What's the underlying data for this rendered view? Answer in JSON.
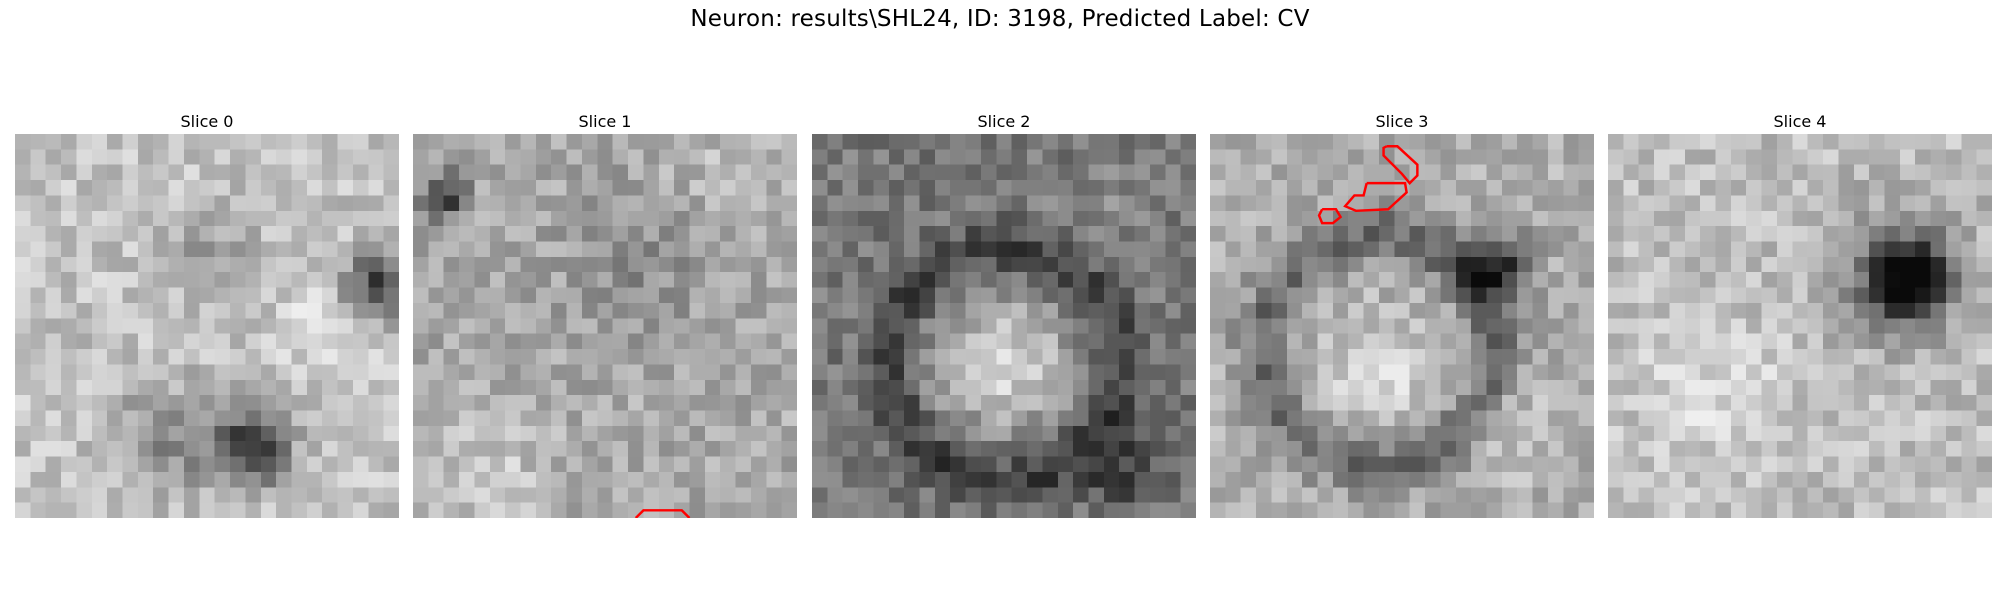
{
  "figure": {
    "title": "Neuron: results\\SHL24, ID: 3198, Predicted Label: CV"
  },
  "panels": [
    {
      "title": "Slice 0",
      "grid_size": 25,
      "pattern": "dark-right-and-bottom",
      "seed": 11
    },
    {
      "title": "Slice 1",
      "grid_size": 25,
      "pattern": "noisy-mid-gray",
      "seed": 23
    },
    {
      "title": "Slice 2",
      "grid_size": 25,
      "pattern": "bright-ring-center",
      "seed": 37
    },
    {
      "title": "Slice 3",
      "grid_size": 25,
      "pattern": "dark-upper-right-ring",
      "seed": 53
    },
    {
      "title": "Slice 4",
      "grid_size": 25,
      "pattern": "dark-upper-right-blob",
      "seed": 71
    }
  ],
  "overlay": {
    "color": "#ff0000",
    "contours": [
      {
        "panel": 1,
        "points": [
          [
            14.5,
            25.0
          ],
          [
            15.0,
            24.5
          ],
          [
            17.5,
            24.5
          ],
          [
            18.0,
            25.0
          ]
        ]
      },
      {
        "panel": 3,
        "points": [
          [
            11.5,
            0.8
          ],
          [
            12.2,
            0.8
          ],
          [
            13.5,
            2.0
          ],
          [
            13.5,
            2.7
          ],
          [
            13.0,
            3.2
          ],
          [
            12.5,
            2.6
          ],
          [
            11.3,
            1.4
          ],
          [
            11.3,
            0.9
          ]
        ]
      },
      {
        "panel": 3,
        "points": [
          [
            10.2,
            3.2
          ],
          [
            12.7,
            3.2
          ],
          [
            12.8,
            3.8
          ],
          [
            11.6,
            4.9
          ],
          [
            9.5,
            5.0
          ],
          [
            8.8,
            4.7
          ],
          [
            9.4,
            4.0
          ],
          [
            10.0,
            4.0
          ]
        ]
      },
      {
        "panel": 3,
        "points": [
          [
            7.3,
            4.9
          ],
          [
            8.2,
            4.9
          ],
          [
            8.5,
            5.4
          ],
          [
            8.0,
            5.8
          ],
          [
            7.3,
            5.8
          ],
          [
            7.1,
            5.3
          ]
        ]
      }
    ]
  }
}
